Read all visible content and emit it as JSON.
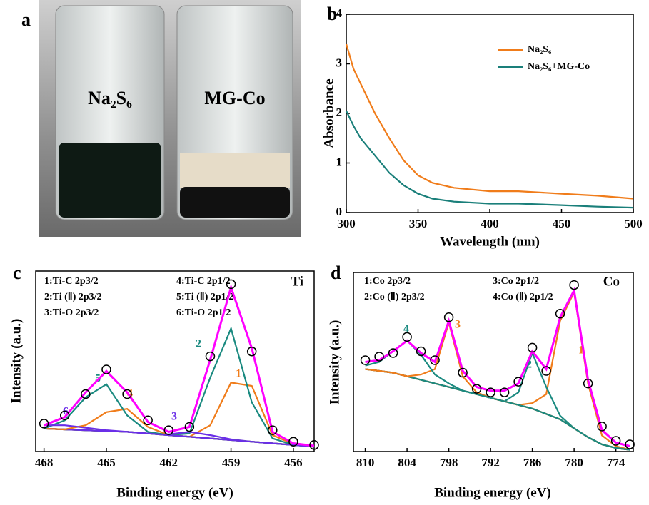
{
  "photo": {
    "panel_label": "a",
    "vials": [
      "Na₂S₆",
      "MG-Co"
    ]
  },
  "chart_data": [
    {
      "type": "line",
      "panel_label": "b",
      "x_label": "Wavelength (nm)",
      "y_label": "Absorbance",
      "x": [
        300,
        305,
        310,
        320,
        330,
        340,
        350,
        360,
        375,
        400,
        420,
        450,
        475,
        500
      ],
      "xlim": [
        300,
        500
      ],
      "xticks": [
        300,
        350,
        400,
        450,
        500
      ],
      "ylim": [
        0,
        4
      ],
      "yticks": [
        0,
        1,
        2,
        3,
        4
      ],
      "legend": "upper right",
      "series": [
        {
          "name": "Na₂S₆",
          "color": "#f07c1a",
          "values": [
            3.4,
            2.9,
            2.6,
            2.0,
            1.5,
            1.05,
            0.75,
            0.6,
            0.5,
            0.43,
            0.43,
            0.38,
            0.34,
            0.28
          ]
        },
        {
          "name": "Na₂S₆+MG-Co",
          "color": "#1a7f7a",
          "values": [
            2.05,
            1.75,
            1.5,
            1.15,
            0.8,
            0.55,
            0.38,
            0.28,
            0.22,
            0.18,
            0.18,
            0.15,
            0.12,
            0.1
          ]
        }
      ]
    },
    {
      "type": "xps",
      "panel_label": "c",
      "element": "Ti",
      "x_label": "Binding energy (eV)",
      "y_label": "Intensity (a.u.)",
      "x": [
        468,
        467,
        466,
        465,
        464,
        463,
        462,
        461,
        460,
        459,
        458,
        457,
        456,
        455
      ],
      "xlim": [
        468.4,
        455
      ],
      "xticks": [
        468,
        465,
        462,
        459,
        456
      ],
      "ylim": [
        0,
        11
      ],
      "series": [
        {
          "color": "#000000",
          "values": [
            1.4,
            1.35,
            1.3,
            1.25,
            1.2,
            1.1,
            1.0,
            0.9,
            0.8,
            0.7,
            0.6,
            0.5,
            0.4,
            0.3
          ]
        },
        {
          "name": "1:Ti-C 2p3/2",
          "label": "1",
          "color": "#f07c1a",
          "values": [
            1.4,
            1.35,
            1.3,
            1.25,
            1.2,
            1.1,
            1.0,
            0.9,
            1.6,
            4.2,
            4.0,
            1.0,
            0.45,
            0.3
          ]
        },
        {
          "name": "2:Ti (Ⅱ) 2p3/2",
          "label": "2",
          "color": "#1a8a80",
          "values": [
            1.4,
            1.35,
            1.3,
            1.25,
            1.2,
            1.1,
            1.0,
            1.1,
            4.5,
            7.5,
            3.0,
            0.8,
            0.4,
            0.3
          ]
        },
        {
          "name": "3:Ti-O 2p3/2",
          "label": "3",
          "color": "#6a2ee8",
          "values": [
            1.4,
            1.35,
            1.3,
            1.25,
            1.2,
            1.1,
            1.05,
            1.2,
            1.0,
            0.75,
            0.6,
            0.5,
            0.4,
            0.3
          ]
        },
        {
          "name": "4:Ti-C 2p1/2",
          "label": "4",
          "color": "#f07c1a",
          "values": [
            1.4,
            1.35,
            1.6,
            2.4,
            2.6,
            1.5,
            1.0,
            0.9,
            0.8,
            0.7,
            0.6,
            0.5,
            0.4,
            0.3
          ]
        },
        {
          "name": "5:Ti (Ⅱ) 2p1/2",
          "label": "5",
          "color": "#1a8a80",
          "values": [
            1.4,
            1.9,
            3.3,
            4.1,
            2.2,
            1.2,
            1.0,
            0.9,
            0.8,
            0.7,
            0.6,
            0.5,
            0.4,
            0.3
          ]
        },
        {
          "name": "6:Ti-O 2p1/2",
          "label": "6",
          "color": "#6a2ee8",
          "values": [
            1.6,
            1.6,
            1.45,
            1.3,
            1.2,
            1.1,
            1.0,
            0.9,
            0.8,
            0.7,
            0.6,
            0.5,
            0.4,
            0.3
          ]
        },
        {
          "color": "#ff00ff",
          "values": [
            1.6,
            2.1,
            3.6,
            4.9,
            3.6,
            1.8,
            1.2,
            1.5,
            5.6,
            10.0,
            6.3,
            1.2,
            0.5,
            0.35
          ]
        },
        {
          "color": "#000000",
          "marker": "circle",
          "values": [
            1.7,
            2.2,
            3.5,
            5.0,
            3.5,
            1.9,
            1.3,
            1.5,
            5.8,
            10.2,
            6.1,
            1.3,
            0.6,
            0.4
          ]
        }
      ]
    },
    {
      "type": "xps",
      "panel_label": "d",
      "element": "Co",
      "x_label": "Binding energy (eV)",
      "y_label": "Intensity (a.u.)",
      "x": [
        810,
        808,
        806,
        804,
        802,
        800,
        798,
        796,
        794,
        792,
        790,
        788,
        786,
        784,
        782,
        780,
        778,
        776,
        774,
        772
      ],
      "xlim": [
        811.7,
        771.5
      ],
      "xticks": [
        810,
        804,
        798,
        792,
        786,
        780,
        774
      ],
      "ylim": [
        0,
        10
      ],
      "series": [
        {
          "color": "#000000",
          "values": [
            4.6,
            4.5,
            4.4,
            4.2,
            4.0,
            3.8,
            3.6,
            3.4,
            3.2,
            3.0,
            2.8,
            2.6,
            2.4,
            2.1,
            1.8,
            1.3,
            0.8,
            0.4,
            0.2,
            0.1
          ]
        },
        {
          "name": "1:Co 2p3/2",
          "label": "1",
          "color": "#f07c1a",
          "values": [
            4.6,
            4.5,
            4.4,
            4.2,
            4.0,
            3.8,
            3.6,
            3.4,
            3.2,
            3.0,
            2.8,
            2.6,
            2.7,
            3.2,
            7.3,
            8.9,
            3.8,
            0.9,
            0.3,
            0.1
          ]
        },
        {
          "name": "2:Co (Ⅱ) 2p3/2",
          "label": "2",
          "color": "#1a8a80",
          "values": [
            4.6,
            4.5,
            4.4,
            4.2,
            4.0,
            3.8,
            3.6,
            3.4,
            3.2,
            3.0,
            2.8,
            3.3,
            5.5,
            3.6,
            2.0,
            1.3,
            0.8,
            0.4,
            0.2,
            0.1
          ]
        },
        {
          "name": "3:Co 2p1/2",
          "label": "3",
          "color": "#f07c1a",
          "values": [
            4.6,
            4.5,
            4.4,
            4.2,
            4.3,
            4.6,
            7.2,
            4.2,
            3.3,
            3.0,
            2.8,
            2.6,
            2.4,
            2.1,
            1.8,
            1.3,
            0.8,
            0.4,
            0.2,
            0.1
          ]
        },
        {
          "name": "4:Co (Ⅱ) 2p1/2",
          "label": "4",
          "color": "#1a8a80",
          "values": [
            4.8,
            5.0,
            5.6,
            6.2,
            5.4,
            4.3,
            3.8,
            3.4,
            3.2,
            3.0,
            2.8,
            2.6,
            2.4,
            2.1,
            1.8,
            1.3,
            0.8,
            0.4,
            0.2,
            0.1
          ]
        },
        {
          "color": "#ff00ff",
          "values": [
            5.0,
            5.1,
            5.6,
            6.2,
            5.5,
            5.0,
            7.3,
            4.5,
            3.6,
            3.4,
            3.4,
            3.8,
            5.6,
            4.6,
            7.5,
            9.0,
            4.0,
            1.2,
            0.5,
            0.3
          ]
        },
        {
          "color": "#000000",
          "marker": "circle",
          "values": [
            5.1,
            5.3,
            5.5,
            6.4,
            5.6,
            5.1,
            7.5,
            4.4,
            3.5,
            3.3,
            3.3,
            3.9,
            5.8,
            4.5,
            7.7,
            9.3,
            3.8,
            1.4,
            0.6,
            0.4
          ]
        }
      ]
    }
  ]
}
